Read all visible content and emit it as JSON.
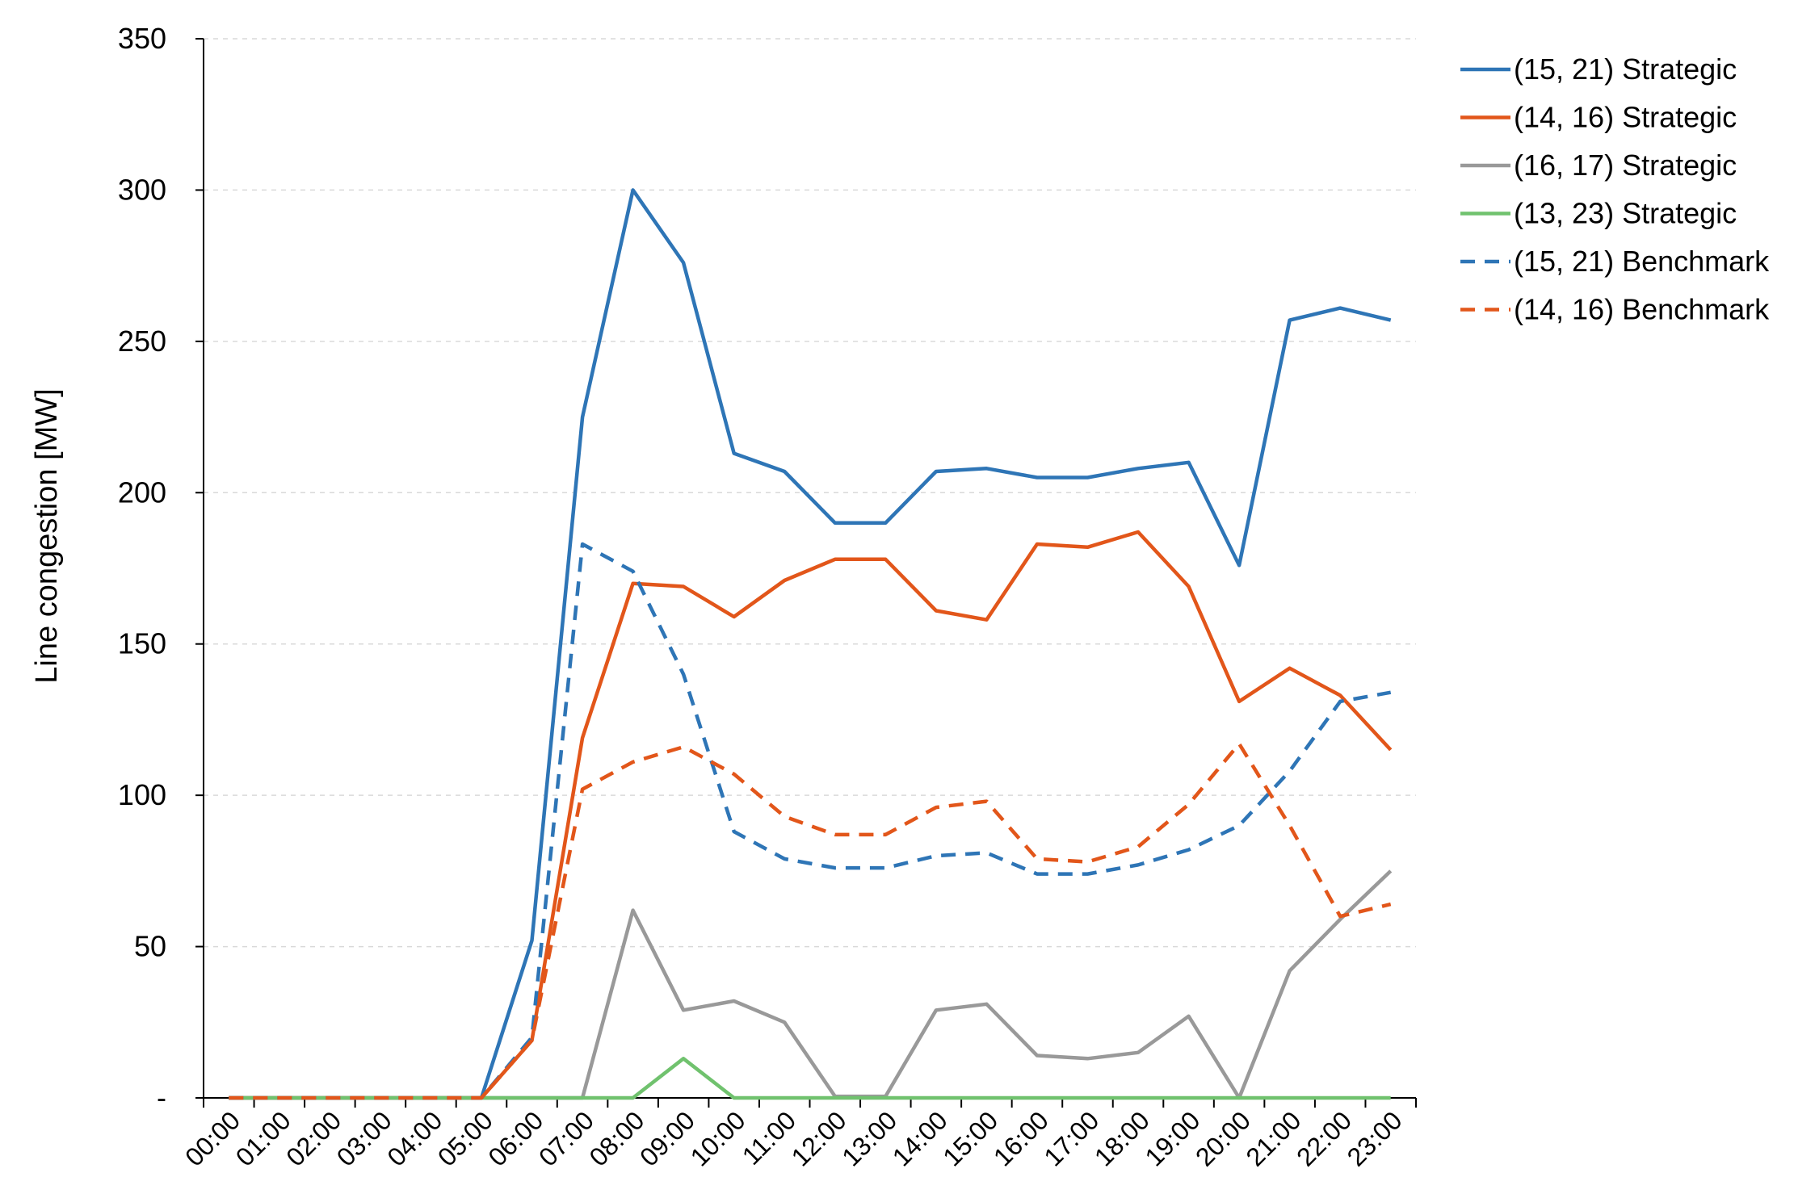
{
  "chart_data": {
    "type": "line",
    "title": "",
    "xlabel": "",
    "ylabel": "Line congestion [MW]",
    "ylim": [
      0,
      350
    ],
    "y_ticks": [
      0,
      50,
      100,
      150,
      200,
      250,
      300,
      350
    ],
    "y_tick_labels": [
      "-",
      "50",
      "100",
      "150",
      "200",
      "250",
      "300",
      "350"
    ],
    "grid": "horizontal dashed",
    "legend_position": "right",
    "categories": [
      "00:00",
      "01:00",
      "02:00",
      "03:00",
      "04:00",
      "05:00",
      "06:00",
      "07:00",
      "08:00",
      "09:00",
      "10:00",
      "11:00",
      "12:00",
      "13:00",
      "14:00",
      "15:00",
      "16:00",
      "17:00",
      "18:00",
      "19:00",
      "20:00",
      "21:00",
      "22:00",
      "23:00"
    ],
    "series": [
      {
        "name": "(15, 21) Strategic",
        "color": "#2E75B6",
        "dash": "solid",
        "values": [
          0,
          0,
          0,
          0,
          0,
          0,
          52,
          225,
          300,
          276,
          213,
          207,
          190,
          190,
          207,
          208,
          205,
          205,
          208,
          210,
          176,
          257,
          261,
          257
        ]
      },
      {
        "name": "(14, 16) Strategic",
        "color": "#E2561A",
        "dash": "solid",
        "values": [
          0,
          0,
          0,
          0,
          0,
          0,
          19,
          119,
          170,
          169,
          159,
          171,
          178,
          178,
          161,
          158,
          183,
          182,
          187,
          169,
          131,
          142,
          133,
          115
        ]
      },
      {
        "name": "(16, 17) Strategic",
        "color": "#999999",
        "dash": "solid",
        "values": [
          0,
          0,
          0,
          0,
          0,
          0,
          0,
          0,
          62,
          29,
          32,
          25,
          0.5,
          0.5,
          29,
          31,
          14,
          13,
          15,
          27,
          0,
          42,
          59,
          75
        ]
      },
      {
        "name": "(13, 23) Strategic",
        "color": "#70C26E",
        "dash": "solid",
        "values": [
          0,
          0,
          0,
          0,
          0,
          0,
          0,
          0,
          0,
          13,
          0,
          0,
          0,
          0,
          0,
          0,
          0,
          0,
          0,
          0,
          0,
          0,
          0,
          0
        ]
      },
      {
        "name": "(15, 21) Benchmark",
        "color": "#2E75B6",
        "dash": "dashed",
        "values": [
          0,
          0,
          0,
          0,
          0,
          0,
          20,
          183,
          174,
          140,
          88,
          79,
          76,
          76,
          80,
          81,
          74,
          74,
          77,
          82,
          90,
          108,
          131,
          134
        ]
      },
      {
        "name": "(14, 16) Benchmark",
        "color": "#E2561A",
        "dash": "dashed",
        "values": [
          0,
          0,
          0,
          0,
          0,
          0,
          19,
          102,
          111,
          116,
          107,
          93,
          87,
          87,
          96,
          98,
          79,
          78,
          83,
          97,
          117,
          90,
          60,
          64
        ]
      }
    ]
  }
}
